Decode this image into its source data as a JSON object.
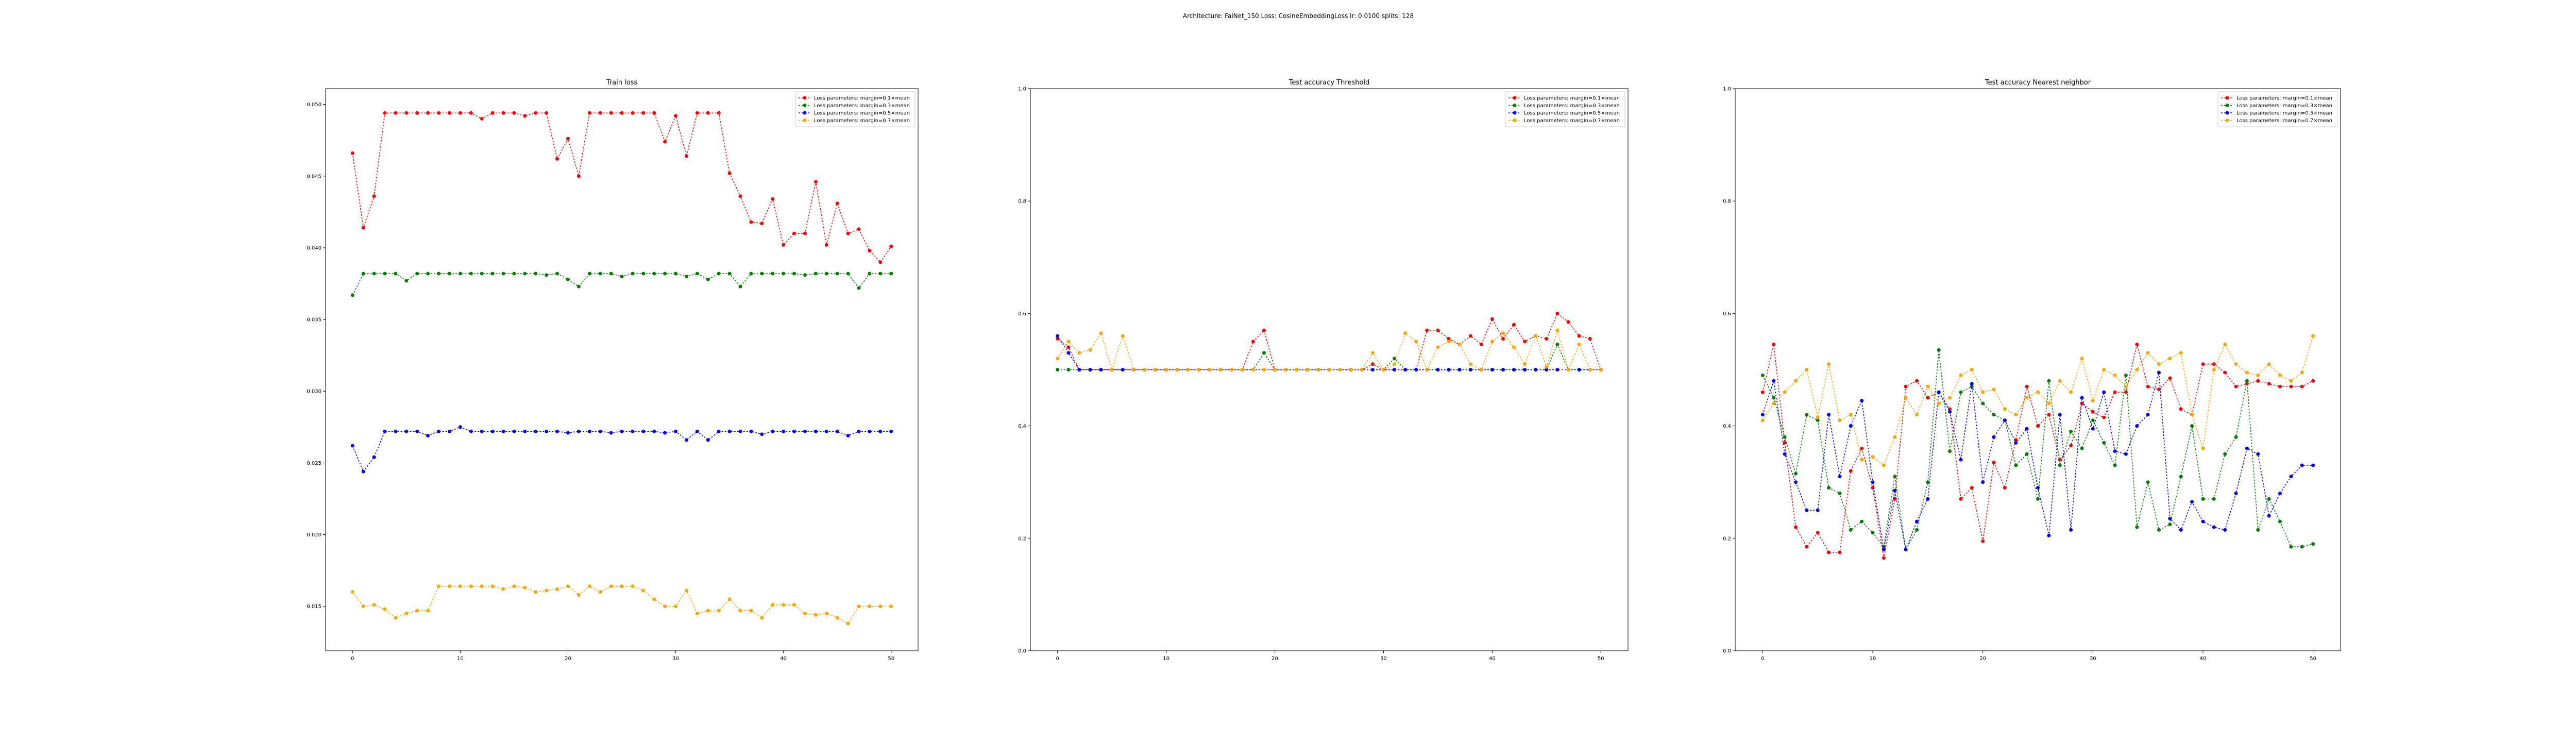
{
  "figure": {
    "suptitle": "Architecture: FaiNet_150 Loss: CosineEmbeddingLoss lr: 0.0100 splits: 128"
  },
  "chart_data": [
    {
      "type": "line",
      "title": "Train loss",
      "xlim": [
        -2.5,
        52.5
      ],
      "ylim": [
        0.0119,
        0.0511
      ],
      "xticks": [
        0,
        10,
        20,
        30,
        40,
        50
      ],
      "xtick_labels": [
        "0",
        "10",
        "20",
        "30",
        "40",
        "50"
      ],
      "yticks": [
        0.015,
        0.02,
        0.025,
        0.03,
        0.035,
        0.04,
        0.045,
        0.05
      ],
      "ytick_labels": [
        "0.015",
        "0.020",
        "0.025",
        "0.030",
        "0.035",
        "0.040",
        "0.045",
        "0.050"
      ],
      "grid": false,
      "legend": "top-right",
      "series": [
        {
          "name": "Loss parameters: margin=0.1×mean",
          "color": "#ff0000",
          "values": [
            0.0466,
            0.0414,
            0.0436,
            0.0494,
            0.0494,
            0.0494,
            0.0494,
            0.0494,
            0.0494,
            0.0494,
            0.0494,
            0.0494,
            0.049,
            0.0494,
            0.0494,
            0.0494,
            0.0492,
            0.0494,
            0.0494,
            0.0462,
            0.0476,
            0.045,
            0.0494,
            0.0494,
            0.0494,
            0.0494,
            0.0494,
            0.0494,
            0.0494,
            0.0474,
            0.0492,
            0.0464,
            0.0494,
            0.0494,
            0.0494,
            0.0452,
            0.0436,
            0.0418,
            0.0417,
            0.0434,
            0.0402,
            0.041,
            0.041,
            0.0446,
            0.0402,
            0.0431,
            0.041,
            0.0413,
            0.0398,
            0.039,
            0.0401
          ]
        },
        {
          "name": "Loss parameters: margin=0.3×mean",
          "color": "#008000",
          "values": [
            0.0367,
            0.0382,
            0.0382,
            0.0382,
            0.0382,
            0.0377,
            0.0382,
            0.0382,
            0.0382,
            0.0382,
            0.0382,
            0.0382,
            0.0382,
            0.0382,
            0.0382,
            0.0382,
            0.0382,
            0.0382,
            0.0381,
            0.0382,
            0.0378,
            0.0373,
            0.0382,
            0.0382,
            0.0382,
            0.038,
            0.0382,
            0.0382,
            0.0382,
            0.0382,
            0.0382,
            0.038,
            0.0382,
            0.0378,
            0.0382,
            0.0382,
            0.0373,
            0.0382,
            0.0382,
            0.0382,
            0.0382,
            0.0382,
            0.0381,
            0.0382,
            0.0382,
            0.0382,
            0.0382,
            0.0372,
            0.0382,
            0.0382,
            0.0382
          ]
        },
        {
          "name": "Loss parameters: margin=0.5×mean",
          "color": "#0000ff",
          "values": [
            0.0262,
            0.0244,
            0.0254,
            0.0272,
            0.0272,
            0.0272,
            0.0272,
            0.0269,
            0.0272,
            0.0272,
            0.0275,
            0.0272,
            0.0272,
            0.0272,
            0.0272,
            0.0272,
            0.0272,
            0.0272,
            0.0272,
            0.0272,
            0.0271,
            0.0272,
            0.0272,
            0.0272,
            0.0271,
            0.0272,
            0.0272,
            0.0272,
            0.0272,
            0.0271,
            0.0272,
            0.0266,
            0.0272,
            0.0266,
            0.0272,
            0.0272,
            0.0272,
            0.0272,
            0.027,
            0.0272,
            0.0272,
            0.0272,
            0.0272,
            0.0272,
            0.0272,
            0.0272,
            0.0269,
            0.0272,
            0.0272,
            0.0272,
            0.0272
          ]
        },
        {
          "name": "Loss parameters: margin=0.7×mean",
          "color": "#ffa500",
          "values": [
            0.016,
            0.015,
            0.0151,
            0.0148,
            0.0142,
            0.0145,
            0.0147,
            0.0147,
            0.0164,
            0.0164,
            0.0164,
            0.0164,
            0.0164,
            0.0164,
            0.0162,
            0.0164,
            0.0163,
            0.016,
            0.0161,
            0.0162,
            0.0164,
            0.0158,
            0.0164,
            0.016,
            0.0164,
            0.0164,
            0.0164,
            0.0161,
            0.0155,
            0.015,
            0.015,
            0.0161,
            0.0145,
            0.0147,
            0.0147,
            0.0155,
            0.0147,
            0.0147,
            0.0142,
            0.0151,
            0.0151,
            0.0151,
            0.0145,
            0.0144,
            0.0145,
            0.0142,
            0.0138,
            0.015,
            0.015,
            0.015,
            0.015
          ]
        }
      ]
    },
    {
      "type": "line",
      "title": "Test accuracy Threshold",
      "xlim": [
        -2.5,
        52.5
      ],
      "ylim": [
        0.0,
        1.0
      ],
      "xticks": [
        0,
        10,
        20,
        30,
        40,
        50
      ],
      "xtick_labels": [
        "0",
        "10",
        "20",
        "30",
        "40",
        "50"
      ],
      "yticks": [
        0.0,
        0.2,
        0.4,
        0.6,
        0.8,
        1.0
      ],
      "ytick_labels": [
        "0.0",
        "0.2",
        "0.4",
        "0.6",
        "0.8",
        "1.0"
      ],
      "grid": false,
      "legend": "top-right",
      "series": [
        {
          "name": "Loss parameters: margin=0.1×mean",
          "color": "#ff0000",
          "values": [
            0.555,
            0.54,
            0.5,
            0.5,
            0.5,
            0.5,
            0.5,
            0.5,
            0.5,
            0.5,
            0.5,
            0.5,
            0.5,
            0.5,
            0.5,
            0.5,
            0.5,
            0.5,
            0.55,
            0.57,
            0.5,
            0.5,
            0.5,
            0.5,
            0.5,
            0.5,
            0.5,
            0.5,
            0.5,
            0.51,
            0.5,
            0.5,
            0.5,
            0.5,
            0.57,
            0.57,
            0.555,
            0.545,
            0.56,
            0.545,
            0.59,
            0.555,
            0.58,
            0.55,
            0.56,
            0.555,
            0.6,
            0.585,
            0.56,
            0.555,
            0.5
          ]
        },
        {
          "name": "Loss parameters: margin=0.3×mean",
          "color": "#008000",
          "values": [
            0.5,
            0.5,
            0.5,
            0.5,
            0.5,
            0.5,
            0.5,
            0.5,
            0.5,
            0.5,
            0.5,
            0.5,
            0.5,
            0.5,
            0.5,
            0.5,
            0.5,
            0.5,
            0.5,
            0.53,
            0.5,
            0.5,
            0.5,
            0.5,
            0.5,
            0.5,
            0.5,
            0.5,
            0.5,
            0.5,
            0.5,
            0.52,
            0.5,
            0.5,
            0.5,
            0.5,
            0.5,
            0.5,
            0.5,
            0.5,
            0.5,
            0.5,
            0.5,
            0.5,
            0.5,
            0.5,
            0.545,
            0.5,
            0.5,
            0.5,
            0.5
          ]
        },
        {
          "name": "Loss parameters: margin=0.5×mean",
          "color": "#0000ff",
          "values": [
            0.56,
            0.53,
            0.5,
            0.5,
            0.5,
            0.5,
            0.5,
            0.5,
            0.5,
            0.5,
            0.5,
            0.5,
            0.5,
            0.5,
            0.5,
            0.5,
            0.5,
            0.5,
            0.5,
            0.5,
            0.5,
            0.5,
            0.5,
            0.5,
            0.5,
            0.5,
            0.5,
            0.5,
            0.5,
            0.5,
            0.5,
            0.5,
            0.5,
            0.5,
            0.5,
            0.5,
            0.5,
            0.5,
            0.5,
            0.5,
            0.5,
            0.5,
            0.5,
            0.5,
            0.5,
            0.5,
            0.5,
            0.5,
            0.5,
            0.5,
            0.5
          ]
        },
        {
          "name": "Loss parameters: margin=0.7×mean",
          "color": "#ffa500",
          "values": [
            0.52,
            0.55,
            0.53,
            0.535,
            0.565,
            0.5,
            0.56,
            0.5,
            0.5,
            0.5,
            0.5,
            0.5,
            0.5,
            0.5,
            0.5,
            0.5,
            0.5,
            0.5,
            0.5,
            0.5,
            0.5,
            0.5,
            0.5,
            0.5,
            0.5,
            0.5,
            0.5,
            0.5,
            0.5,
            0.53,
            0.5,
            0.51,
            0.565,
            0.55,
            0.5,
            0.54,
            0.55,
            0.545,
            0.51,
            0.5,
            0.55,
            0.565,
            0.54,
            0.51,
            0.56,
            0.505,
            0.57,
            0.5,
            0.545,
            0.5,
            0.5
          ]
        }
      ]
    },
    {
      "type": "line",
      "title": "Test accuracy Nearest neighbor",
      "xlim": [
        -2.5,
        52.5
      ],
      "ylim": [
        0.0,
        1.0
      ],
      "xticks": [
        0,
        10,
        20,
        30,
        40,
        50
      ],
      "xtick_labels": [
        "0",
        "10",
        "20",
        "30",
        "40",
        "50"
      ],
      "yticks": [
        0.0,
        0.2,
        0.4,
        0.6,
        0.8,
        1.0
      ],
      "ytick_labels": [
        "0.0",
        "0.2",
        "0.4",
        "0.6",
        "0.8",
        "1.0"
      ],
      "grid": false,
      "legend": "top-right",
      "series": [
        {
          "name": "Loss parameters: margin=0.1×mean",
          "color": "#ff0000",
          "values": [
            0.46,
            0.545,
            0.37,
            0.22,
            0.185,
            0.21,
            0.175,
            0.175,
            0.32,
            0.36,
            0.29,
            0.165,
            0.27,
            0.47,
            0.48,
            0.45,
            0.46,
            0.43,
            0.27,
            0.29,
            0.195,
            0.335,
            0.29,
            0.375,
            0.47,
            0.4,
            0.42,
            0.34,
            0.365,
            0.44,
            0.425,
            0.415,
            0.46,
            0.46,
            0.545,
            0.47,
            0.465,
            0.485,
            0.43,
            0.42,
            0.51,
            0.51,
            0.495,
            0.47,
            0.475,
            0.48,
            0.475,
            0.47,
            0.47,
            0.47,
            0.48
          ]
        },
        {
          "name": "Loss parameters: margin=0.3×mean",
          "color": "#008000",
          "values": [
            0.49,
            0.45,
            0.38,
            0.315,
            0.42,
            0.41,
            0.29,
            0.28,
            0.215,
            0.23,
            0.21,
            0.185,
            0.31,
            0.18,
            0.215,
            0.3,
            0.535,
            0.355,
            0.46,
            0.47,
            0.44,
            0.42,
            0.41,
            0.33,
            0.35,
            0.27,
            0.48,
            0.33,
            0.39,
            0.36,
            0.41,
            0.37,
            0.33,
            0.49,
            0.22,
            0.3,
            0.215,
            0.225,
            0.31,
            0.4,
            0.27,
            0.27,
            0.35,
            0.38,
            0.48,
            0.215,
            0.27,
            0.23,
            0.185,
            0.185,
            0.19
          ]
        },
        {
          "name": "Loss parameters: margin=0.5×mean",
          "color": "#0000ff",
          "values": [
            0.42,
            0.48,
            0.35,
            0.3,
            0.25,
            0.25,
            0.42,
            0.31,
            0.4,
            0.445,
            0.3,
            0.18,
            0.285,
            0.18,
            0.23,
            0.27,
            0.46,
            0.425,
            0.34,
            0.475,
            0.3,
            0.38,
            0.41,
            0.37,
            0.395,
            0.29,
            0.205,
            0.42,
            0.215,
            0.45,
            0.395,
            0.46,
            0.355,
            0.35,
            0.4,
            0.42,
            0.495,
            0.235,
            0.215,
            0.265,
            0.23,
            0.22,
            0.215,
            0.28,
            0.36,
            0.35,
            0.24,
            0.28,
            0.31,
            0.33,
            0.33
          ]
        },
        {
          "name": "Loss parameters: margin=0.7×mean",
          "color": "#ffa500",
          "values": [
            0.41,
            0.44,
            0.46,
            0.48,
            0.5,
            0.415,
            0.51,
            0.41,
            0.42,
            0.34,
            0.345,
            0.33,
            0.38,
            0.45,
            0.42,
            0.47,
            0.44,
            0.45,
            0.49,
            0.5,
            0.46,
            0.465,
            0.43,
            0.42,
            0.45,
            0.46,
            0.44,
            0.48,
            0.46,
            0.52,
            0.445,
            0.5,
            0.49,
            0.47,
            0.5,
            0.53,
            0.51,
            0.52,
            0.53,
            0.42,
            0.36,
            0.5,
            0.545,
            0.51,
            0.495,
            0.49,
            0.51,
            0.49,
            0.48,
            0.495,
            0.56
          ]
        }
      ]
    }
  ]
}
